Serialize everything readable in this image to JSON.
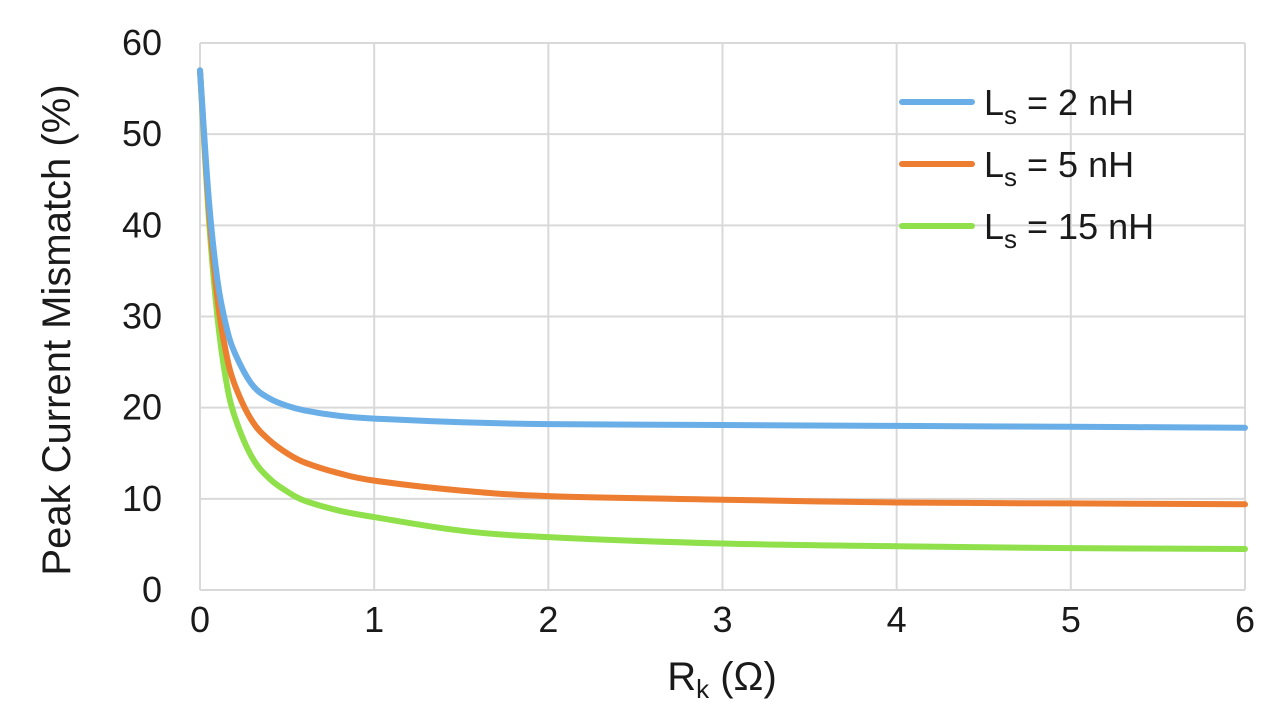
{
  "chart_data": {
    "type": "line",
    "title": "",
    "xlabel": {
      "main": "R",
      "sub": "k",
      "unit": " (Ω)"
    },
    "ylabel": "Peak Current Mismatch (%)",
    "xlim": [
      0,
      6
    ],
    "ylim": [
      0,
      60
    ],
    "xticks": [
      "0",
      "1",
      "2",
      "3",
      "4",
      "5",
      "6"
    ],
    "yticks": [
      "0",
      "10",
      "20",
      "30",
      "40",
      "50",
      "60"
    ],
    "grid": true,
    "legend_position": "top-right",
    "series": [
      {
        "name": {
          "main": "L",
          "sub": "s",
          "rest": " = 2 nH"
        },
        "color": "#6aaee8",
        "x": [
          0,
          0.05,
          0.1,
          0.15,
          0.2,
          0.3,
          0.4,
          0.5,
          0.6,
          0.8,
          1,
          1.5,
          2,
          3,
          4,
          5,
          6
        ],
        "y": [
          57,
          43,
          34,
          29,
          26,
          22.5,
          21,
          20.2,
          19.7,
          19.1,
          18.8,
          18.4,
          18.2,
          18.1,
          18.0,
          17.9,
          17.8
        ]
      },
      {
        "name": {
          "main": "L",
          "sub": "s",
          "rest": " = 5 nH"
        },
        "color": "#ed7d31",
        "x": [
          0,
          0.05,
          0.1,
          0.15,
          0.2,
          0.3,
          0.4,
          0.5,
          0.6,
          0.8,
          1,
          1.5,
          2,
          3,
          4,
          5,
          6
        ],
        "y": [
          57,
          42,
          32,
          26,
          22.5,
          18.5,
          16.4,
          15,
          14,
          12.8,
          12,
          10.9,
          10.3,
          9.9,
          9.6,
          9.5,
          9.4
        ]
      },
      {
        "name": {
          "main": "L",
          "sub": "s",
          "rest": " = 15 nH"
        },
        "color": "#8fe04a",
        "x": [
          0,
          0.05,
          0.1,
          0.15,
          0.2,
          0.3,
          0.4,
          0.5,
          0.6,
          0.8,
          1,
          1.5,
          2,
          3,
          4,
          5,
          6
        ],
        "y": [
          57,
          41,
          30,
          23,
          19,
          14.5,
          12.2,
          10.8,
          9.8,
          8.7,
          8,
          6.5,
          5.8,
          5.1,
          4.8,
          4.6,
          4.5
        ]
      }
    ]
  }
}
